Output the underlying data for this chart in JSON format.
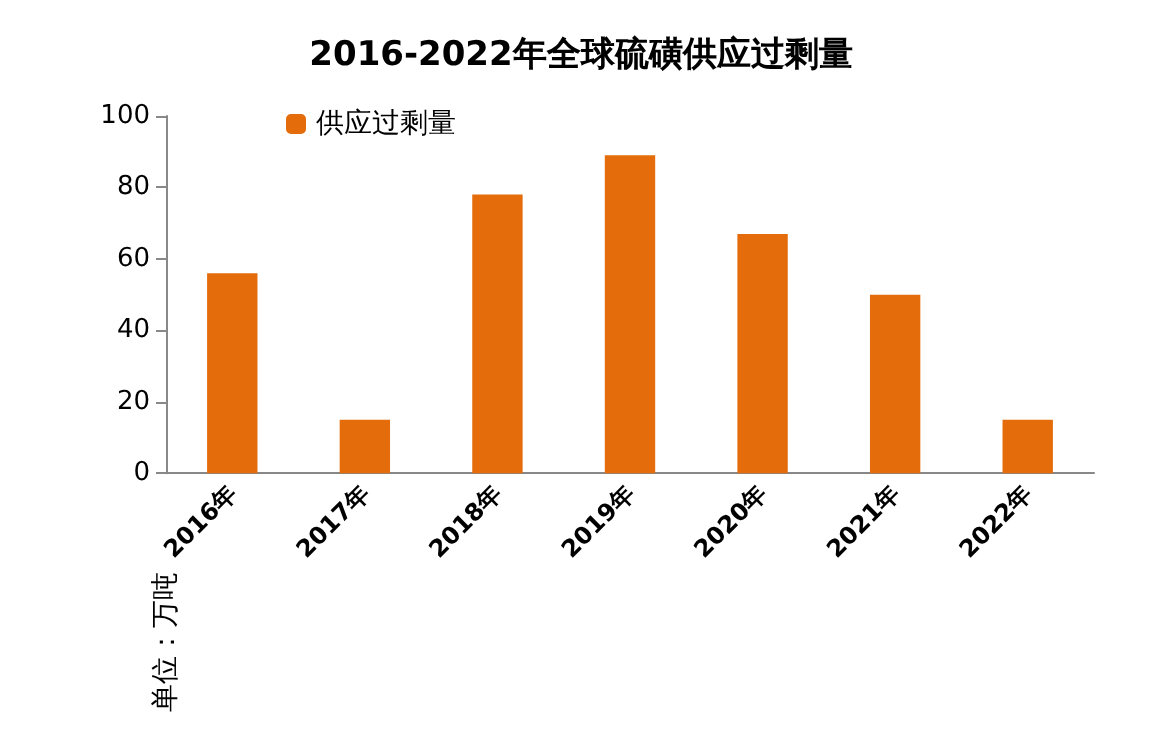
{
  "chart_data": {
    "type": "bar",
    "title": "2016-2022年全球硫磺供应过剩量",
    "ylabel": "单位：万吨",
    "categories": [
      "2016年",
      "2017年",
      "2018年",
      "2019年",
      "2020年",
      "2021年",
      "2022年"
    ],
    "series": [
      {
        "name": "供应过剩量",
        "color": "#e46c0a",
        "values": [
          56,
          15,
          78,
          89,
          67,
          50,
          15
        ]
      }
    ],
    "ylim": [
      0,
      100
    ],
    "yticks": [
      0,
      20,
      40,
      60,
      80,
      100
    ],
    "grid": false,
    "legend": "top left"
  }
}
